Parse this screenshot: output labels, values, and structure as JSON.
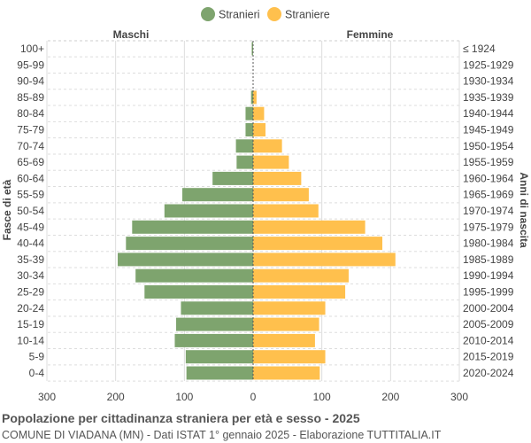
{
  "chart_data": {
    "type": "bar",
    "orientation": "horizontal-pyramid",
    "title": "Popolazione per cittadinanza straniera per età e sesso - 2025",
    "subtitle": "COMUNE DI VIADANA (MN) - Dati ISTAT 1° gennaio 2025 - Elaborazione TUTTITALIA.IT",
    "left_header": "Maschi",
    "right_header": "Femmine",
    "ylabel_left": "Fasce di età",
    "ylabel_right": "Anni di nascita",
    "legend_position": "top",
    "xlim": [
      -300,
      300
    ],
    "xticks": [
      "300",
      "200",
      "100",
      "0",
      "100",
      "200",
      "300"
    ],
    "grid": true,
    "categories": [
      "100+",
      "95-99",
      "90-94",
      "85-89",
      "80-84",
      "75-79",
      "70-74",
      "65-69",
      "60-64",
      "55-59",
      "50-54",
      "45-49",
      "40-44",
      "35-39",
      "30-34",
      "25-29",
      "20-24",
      "15-19",
      "10-14",
      "5-9",
      "0-4"
    ],
    "birth_years": [
      "≤ 1924",
      "1925-1929",
      "1930-1934",
      "1935-1939",
      "1940-1944",
      "1945-1949",
      "1950-1954",
      "1955-1959",
      "1960-1964",
      "1965-1969",
      "1970-1974",
      "1975-1979",
      "1980-1984",
      "1985-1989",
      "1990-1994",
      "1995-1999",
      "2000-2004",
      "2005-2009",
      "2010-2014",
      "2015-2019",
      "2020-2024"
    ],
    "series": [
      {
        "name": "Stranieri",
        "color": "#7ea46e",
        "values": [
          2,
          0,
          0,
          3,
          11,
          11,
          25,
          24,
          59,
          103,
          129,
          176,
          185,
          197,
          171,
          158,
          105,
          112,
          114,
          98,
          97
        ]
      },
      {
        "name": "Straniere",
        "color": "#ffc04d",
        "values": [
          0,
          0,
          0,
          5,
          16,
          18,
          42,
          52,
          70,
          81,
          95,
          163,
          188,
          207,
          139,
          134,
          105,
          96,
          90,
          105,
          97
        ]
      }
    ]
  }
}
